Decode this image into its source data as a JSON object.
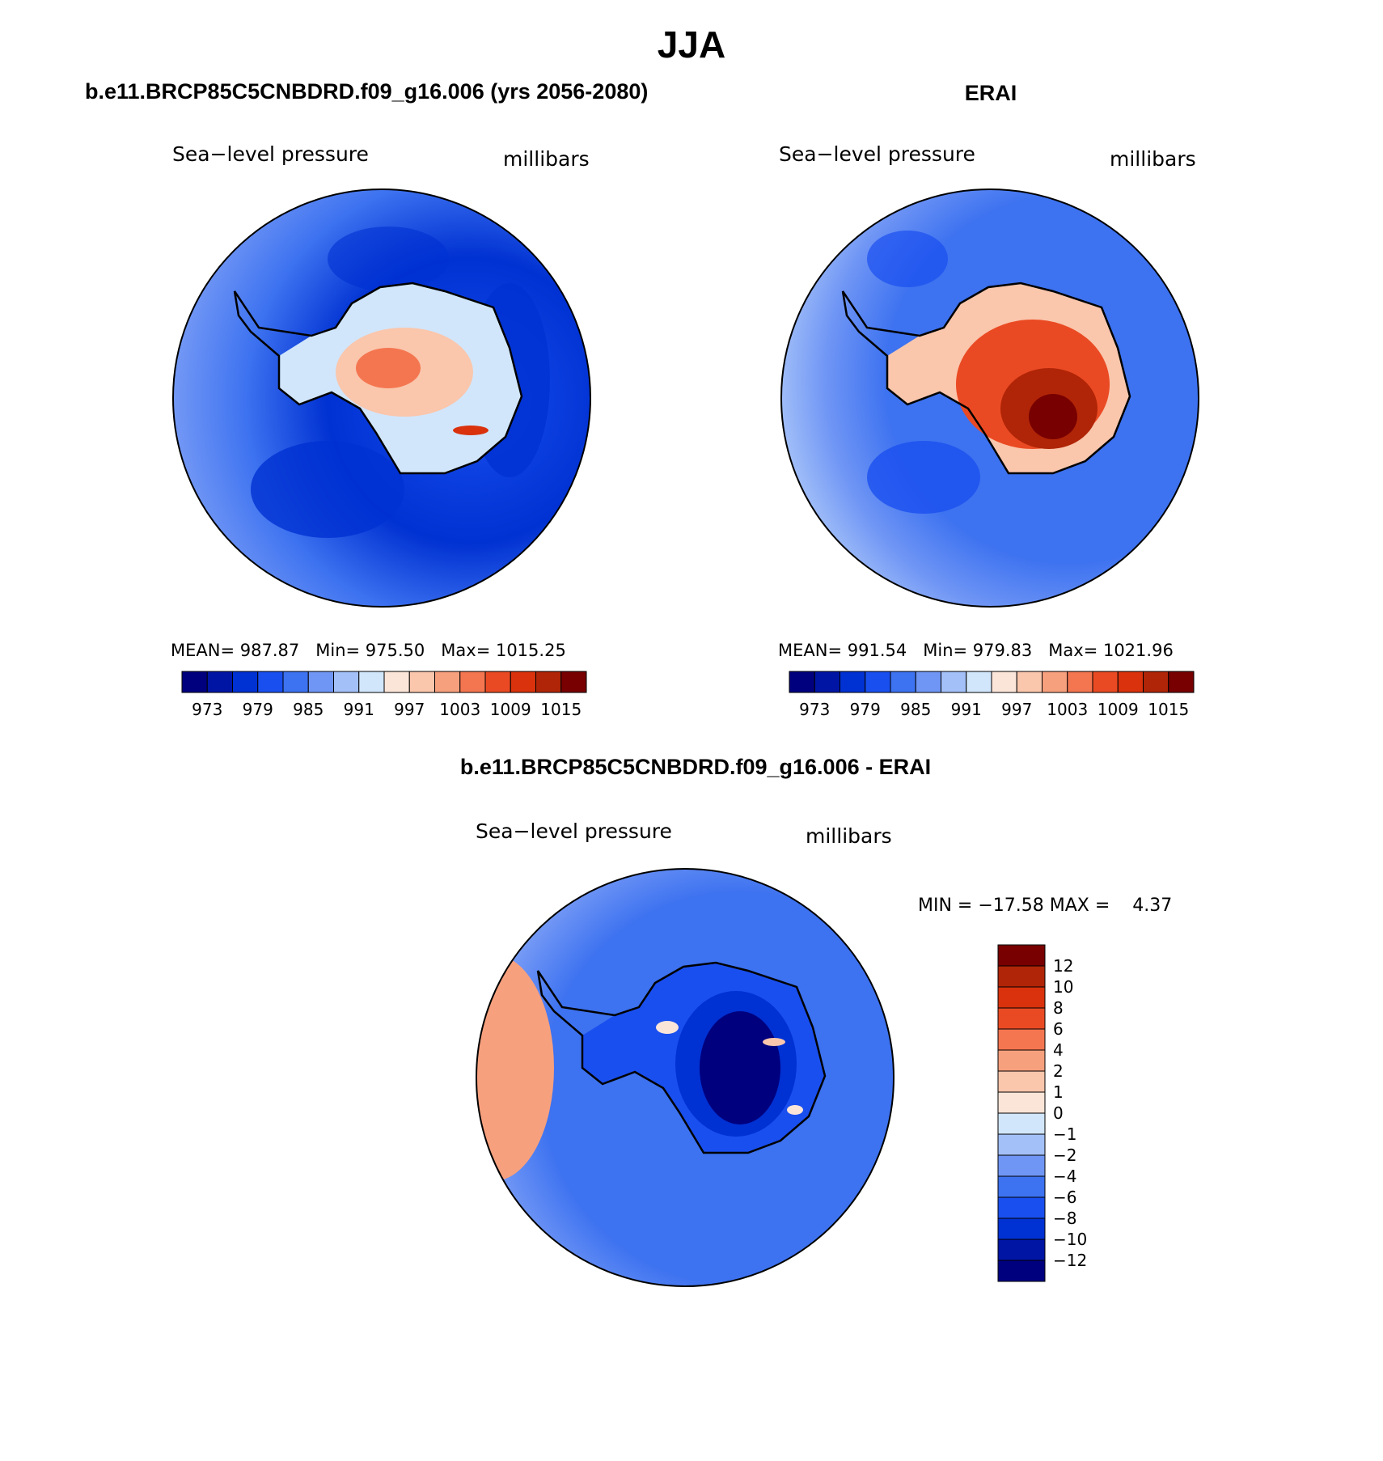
{
  "title": "JJA",
  "colors": {
    "palette": [
      "#00007f",
      "#0015a4",
      "#0031d2",
      "#1a4fef",
      "#3d72f0",
      "#7096f5",
      "#a3c0f8",
      "#d1e6fb",
      "#fbe5d9",
      "#fac6ac",
      "#f7a07e",
      "#f47650",
      "#ea4a23",
      "#d9320c",
      "#b02507",
      "#780000"
    ],
    "diff_palette": [
      "#00007f",
      "#0015a4",
      "#0031d2",
      "#1a4fef",
      "#3d72f0",
      "#7096f5",
      "#a3c0f8",
      "#d1e6fb",
      "#fbe5d9",
      "#fac6ac",
      "#f7a07e",
      "#f47650",
      "#ea4a23",
      "#d9320c",
      "#b02507",
      "#780000"
    ],
    "coast": "#000000"
  },
  "panels": [
    {
      "title": "b.e11.BRCP85C5CNBDRD.f09_g16.006 (yrs 2056-2080)",
      "left_label": "Sea−level pressure",
      "right_label": "millibars",
      "stats_line": "MEAN= 987.87   Min= 975.50   Max= 1015.25"
    },
    {
      "title": "ERAI",
      "left_label": "Sea−level pressure",
      "right_label": "millibars",
      "stats_line": "MEAN= 991.54   Min= 979.83   Max= 1021.96"
    },
    {
      "title": "b.e11.BRCP85C5CNBDRD.f09_g16.006 - ERAI",
      "left_label": "Sea−level pressure",
      "right_label": "millibars",
      "stats_line": "MIN = −17.58 MAX =    4.37"
    }
  ],
  "chart_data": [
    {
      "type": "heatmap",
      "projection": "south-polar stereographic",
      "title": "b.e11.BRCP85C5CNBDRD.f09_g16.006 (yrs 2056-2080)",
      "variable": "Sea-level pressure",
      "units": "millibars",
      "mean": 987.87,
      "min": 975.5,
      "max": 1015.25,
      "contour_levels": [
        970,
        973,
        976,
        979,
        982,
        985,
        988,
        991,
        994,
        997,
        1000,
        1003,
        1006,
        1009,
        1012,
        1015
      ],
      "colorbar_tick_labels": [
        "973",
        "979",
        "985",
        "991",
        "997",
        "1003",
        "1009",
        "1015"
      ],
      "colorbar_orientation": "horizontal"
    },
    {
      "type": "heatmap",
      "projection": "south-polar stereographic",
      "title": "ERAI",
      "variable": "Sea-level pressure",
      "units": "millibars",
      "mean": 991.54,
      "min": 979.83,
      "max": 1021.96,
      "contour_levels": [
        970,
        973,
        976,
        979,
        982,
        985,
        988,
        991,
        994,
        997,
        1000,
        1003,
        1006,
        1009,
        1012,
        1015
      ],
      "colorbar_tick_labels": [
        "973",
        "979",
        "985",
        "991",
        "997",
        "1003",
        "1009",
        "1015"
      ],
      "colorbar_orientation": "horizontal"
    },
    {
      "type": "heatmap",
      "projection": "south-polar stereographic",
      "title": "b.e11.BRCP85C5CNBDRD.f09_g16.006 - ERAI",
      "variable": "Sea-level pressure",
      "units": "millibars",
      "min": -17.58,
      "max": 4.37,
      "contour_levels": [
        -12,
        -10,
        -8,
        -6,
        -4,
        -2,
        -1,
        0,
        1,
        2,
        4,
        6,
        8,
        10,
        12
      ],
      "colorbar_tick_labels": [
        "12",
        "10",
        "8",
        "6",
        "4",
        "2",
        "1",
        "0",
        "−1",
        "−2",
        "−4",
        "−6",
        "−8",
        "−10",
        "−12"
      ],
      "colorbar_orientation": "vertical"
    }
  ]
}
